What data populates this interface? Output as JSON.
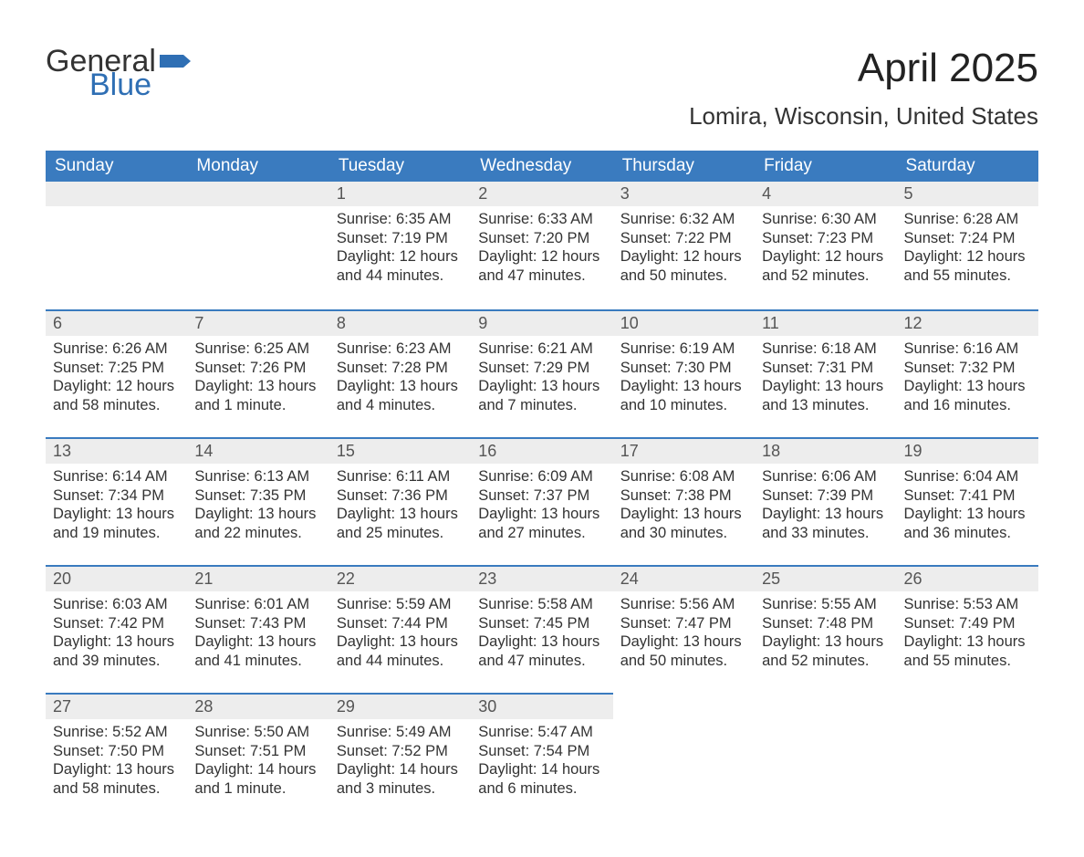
{
  "logo": {
    "word1": "General",
    "word2": "Blue",
    "flag_color": "#2f6fb4"
  },
  "title": "April 2025",
  "location": "Lomira, Wisconsin, United States",
  "colors": {
    "header_bg": "#3a7bbf",
    "header_text": "#ffffff",
    "daybar_bg": "#ededed",
    "rule": "#3a7bbf",
    "body_text": "#333333"
  },
  "day_names": [
    "Sunday",
    "Monday",
    "Tuesday",
    "Wednesday",
    "Thursday",
    "Friday",
    "Saturday"
  ],
  "labels": {
    "sunrise": "Sunrise:",
    "sunset": "Sunset:",
    "daylight": "Daylight:"
  },
  "weeks": [
    [
      {
        "day": "",
        "sunrise": "",
        "sunset": "",
        "daylight": ""
      },
      {
        "day": "",
        "sunrise": "",
        "sunset": "",
        "daylight": ""
      },
      {
        "day": "1",
        "sunrise": "6:35 AM",
        "sunset": "7:19 PM",
        "daylight": "12 hours and 44 minutes."
      },
      {
        "day": "2",
        "sunrise": "6:33 AM",
        "sunset": "7:20 PM",
        "daylight": "12 hours and 47 minutes."
      },
      {
        "day": "3",
        "sunrise": "6:32 AM",
        "sunset": "7:22 PM",
        "daylight": "12 hours and 50 minutes."
      },
      {
        "day": "4",
        "sunrise": "6:30 AM",
        "sunset": "7:23 PM",
        "daylight": "12 hours and 52 minutes."
      },
      {
        "day": "5",
        "sunrise": "6:28 AM",
        "sunset": "7:24 PM",
        "daylight": "12 hours and 55 minutes."
      }
    ],
    [
      {
        "day": "6",
        "sunrise": "6:26 AM",
        "sunset": "7:25 PM",
        "daylight": "12 hours and 58 minutes."
      },
      {
        "day": "7",
        "sunrise": "6:25 AM",
        "sunset": "7:26 PM",
        "daylight": "13 hours and 1 minute."
      },
      {
        "day": "8",
        "sunrise": "6:23 AM",
        "sunset": "7:28 PM",
        "daylight": "13 hours and 4 minutes."
      },
      {
        "day": "9",
        "sunrise": "6:21 AM",
        "sunset": "7:29 PM",
        "daylight": "13 hours and 7 minutes."
      },
      {
        "day": "10",
        "sunrise": "6:19 AM",
        "sunset": "7:30 PM",
        "daylight": "13 hours and 10 minutes."
      },
      {
        "day": "11",
        "sunrise": "6:18 AM",
        "sunset": "7:31 PM",
        "daylight": "13 hours and 13 minutes."
      },
      {
        "day": "12",
        "sunrise": "6:16 AM",
        "sunset": "7:32 PM",
        "daylight": "13 hours and 16 minutes."
      }
    ],
    [
      {
        "day": "13",
        "sunrise": "6:14 AM",
        "sunset": "7:34 PM",
        "daylight": "13 hours and 19 minutes."
      },
      {
        "day": "14",
        "sunrise": "6:13 AM",
        "sunset": "7:35 PM",
        "daylight": "13 hours and 22 minutes."
      },
      {
        "day": "15",
        "sunrise": "6:11 AM",
        "sunset": "7:36 PM",
        "daylight": "13 hours and 25 minutes."
      },
      {
        "day": "16",
        "sunrise": "6:09 AM",
        "sunset": "7:37 PM",
        "daylight": "13 hours and 27 minutes."
      },
      {
        "day": "17",
        "sunrise": "6:08 AM",
        "sunset": "7:38 PM",
        "daylight": "13 hours and 30 minutes."
      },
      {
        "day": "18",
        "sunrise": "6:06 AM",
        "sunset": "7:39 PM",
        "daylight": "13 hours and 33 minutes."
      },
      {
        "day": "19",
        "sunrise": "6:04 AM",
        "sunset": "7:41 PM",
        "daylight": "13 hours and 36 minutes."
      }
    ],
    [
      {
        "day": "20",
        "sunrise": "6:03 AM",
        "sunset": "7:42 PM",
        "daylight": "13 hours and 39 minutes."
      },
      {
        "day": "21",
        "sunrise": "6:01 AM",
        "sunset": "7:43 PM",
        "daylight": "13 hours and 41 minutes."
      },
      {
        "day": "22",
        "sunrise": "5:59 AM",
        "sunset": "7:44 PM",
        "daylight": "13 hours and 44 minutes."
      },
      {
        "day": "23",
        "sunrise": "5:58 AM",
        "sunset": "7:45 PM",
        "daylight": "13 hours and 47 minutes."
      },
      {
        "day": "24",
        "sunrise": "5:56 AM",
        "sunset": "7:47 PM",
        "daylight": "13 hours and 50 minutes."
      },
      {
        "day": "25",
        "sunrise": "5:55 AM",
        "sunset": "7:48 PM",
        "daylight": "13 hours and 52 minutes."
      },
      {
        "day": "26",
        "sunrise": "5:53 AM",
        "sunset": "7:49 PM",
        "daylight": "13 hours and 55 minutes."
      }
    ],
    [
      {
        "day": "27",
        "sunrise": "5:52 AM",
        "sunset": "7:50 PM",
        "daylight": "13 hours and 58 minutes."
      },
      {
        "day": "28",
        "sunrise": "5:50 AM",
        "sunset": "7:51 PM",
        "daylight": "14 hours and 1 minute."
      },
      {
        "day": "29",
        "sunrise": "5:49 AM",
        "sunset": "7:52 PM",
        "daylight": "14 hours and 3 minutes."
      },
      {
        "day": "30",
        "sunrise": "5:47 AM",
        "sunset": "7:54 PM",
        "daylight": "14 hours and 6 minutes."
      },
      {
        "day": "",
        "sunrise": "",
        "sunset": "",
        "daylight": ""
      },
      {
        "day": "",
        "sunrise": "",
        "sunset": "",
        "daylight": ""
      },
      {
        "day": "",
        "sunrise": "",
        "sunset": "",
        "daylight": ""
      }
    ]
  ]
}
